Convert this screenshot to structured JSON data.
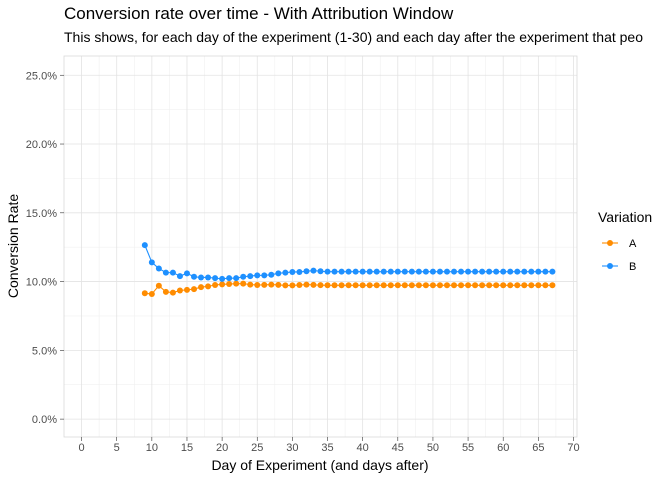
{
  "chart_data": {
    "type": "line",
    "title": "Conversion rate over time - With Attribution Window",
    "subtitle": "This shows, for each day of the experiment (1-30) and each day after the experiment that peo",
    "xlabel": "Day of Experiment (and days after)",
    "ylabel": "Conversion Rate",
    "xlim": [
      -2.5,
      70.5
    ],
    "ylim": [
      -0.013,
      0.264
    ],
    "x_ticks": [
      0,
      5,
      10,
      15,
      20,
      25,
      30,
      35,
      40,
      45,
      50,
      55,
      60,
      65,
      70
    ],
    "x_tick_labels": [
      "0",
      "5",
      "10",
      "15",
      "20",
      "25",
      "30",
      "35",
      "40",
      "45",
      "50",
      "55",
      "60",
      "65",
      "70"
    ],
    "y_ticks": [
      0,
      0.05,
      0.1,
      0.15,
      0.2,
      0.25
    ],
    "y_tick_labels": [
      "0.0%",
      "5.0%",
      "10.0%",
      "15.0%",
      "20.0%",
      "25.0%"
    ],
    "grid": true,
    "legend": {
      "title": "Variation",
      "position": "right"
    },
    "x": [
      9,
      10,
      11,
      12,
      13,
      14,
      15,
      16,
      17,
      18,
      19,
      20,
      21,
      22,
      23,
      24,
      25,
      26,
      27,
      28,
      29,
      30,
      31,
      32,
      33,
      34,
      35,
      36,
      37,
      38,
      39,
      40,
      41,
      42,
      43,
      44,
      45,
      46,
      47,
      48,
      49,
      50,
      51,
      52,
      53,
      54,
      55,
      56,
      57,
      58,
      59,
      60,
      61,
      62,
      63,
      64,
      65,
      66,
      67
    ],
    "series": [
      {
        "name": "A",
        "color": "#ff8c00",
        "values": [
          0.0915,
          0.091,
          0.097,
          0.0925,
          0.092,
          0.0935,
          0.094,
          0.0945,
          0.096,
          0.0965,
          0.0975,
          0.098,
          0.0982,
          0.0985,
          0.0985,
          0.0978,
          0.0975,
          0.0976,
          0.0978,
          0.0976,
          0.0972,
          0.0972,
          0.0975,
          0.0978,
          0.0976,
          0.0974,
          0.0973,
          0.0973,
          0.0973,
          0.0973,
          0.0973,
          0.0973,
          0.0973,
          0.0973,
          0.0973,
          0.0973,
          0.0973,
          0.0973,
          0.0973,
          0.0973,
          0.0973,
          0.0973,
          0.0973,
          0.0973,
          0.0973,
          0.0973,
          0.0973,
          0.0973,
          0.0973,
          0.0973,
          0.0973,
          0.0973,
          0.0973,
          0.0973,
          0.0973,
          0.0973,
          0.0973,
          0.0973,
          0.0973
        ]
      },
      {
        "name": "B",
        "color": "#1e90ff",
        "values": [
          0.1265,
          0.114,
          0.1095,
          0.1065,
          0.1065,
          0.104,
          0.106,
          0.1035,
          0.103,
          0.103,
          0.1025,
          0.102,
          0.1025,
          0.1025,
          0.1035,
          0.104,
          0.1045,
          0.1045,
          0.105,
          0.106,
          0.1065,
          0.107,
          0.107,
          0.1075,
          0.108,
          0.1075,
          0.1072,
          0.1072,
          0.1072,
          0.1072,
          0.1072,
          0.1072,
          0.1072,
          0.1072,
          0.1072,
          0.1072,
          0.1072,
          0.1072,
          0.1072,
          0.1072,
          0.1072,
          0.1072,
          0.1072,
          0.1072,
          0.1072,
          0.1072,
          0.1072,
          0.1072,
          0.1072,
          0.1072,
          0.1072,
          0.1072,
          0.1072,
          0.1072,
          0.1072,
          0.1072,
          0.1072,
          0.1072,
          0.1072
        ]
      }
    ]
  }
}
